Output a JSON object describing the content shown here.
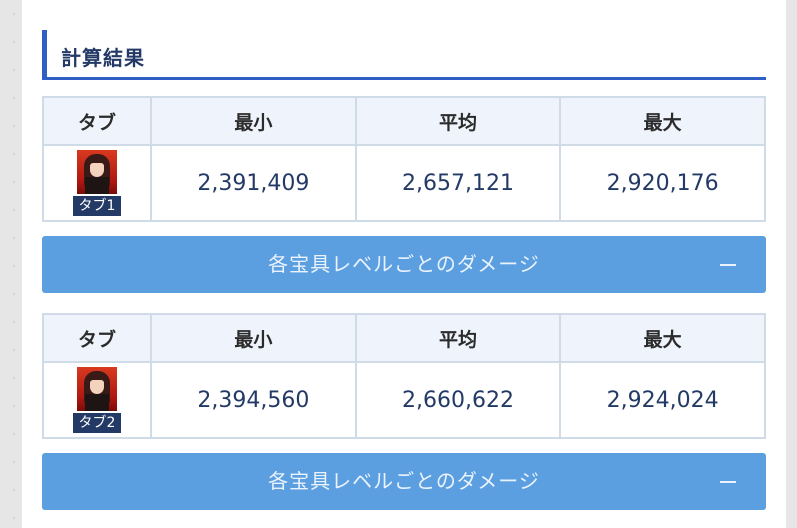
{
  "section": {
    "title": "計算結果"
  },
  "results": [
    {
      "headers": {
        "tab": "タブ",
        "min": "最小",
        "avg": "平均",
        "max": "最大"
      },
      "tab_label": "タブ1",
      "min": "2,391,409",
      "avg": "2,657,121",
      "max": "2,920,176",
      "toggle_label": "各宝具レベルごとのダメージ",
      "toggle_icon": "minus-icon"
    },
    {
      "headers": {
        "tab": "タブ",
        "min": "最小",
        "avg": "平均",
        "max": "最大"
      },
      "tab_label": "タブ2",
      "min": "2,394,560",
      "avg": "2,660,622",
      "max": "2,924,024",
      "toggle_label": "各宝具レベルごとのダメージ",
      "toggle_icon": "minus-icon"
    }
  ],
  "colors": {
    "accent": "#2f5fc4",
    "toggle_bar": "#5c9fe0",
    "value_text": "#243a66"
  }
}
